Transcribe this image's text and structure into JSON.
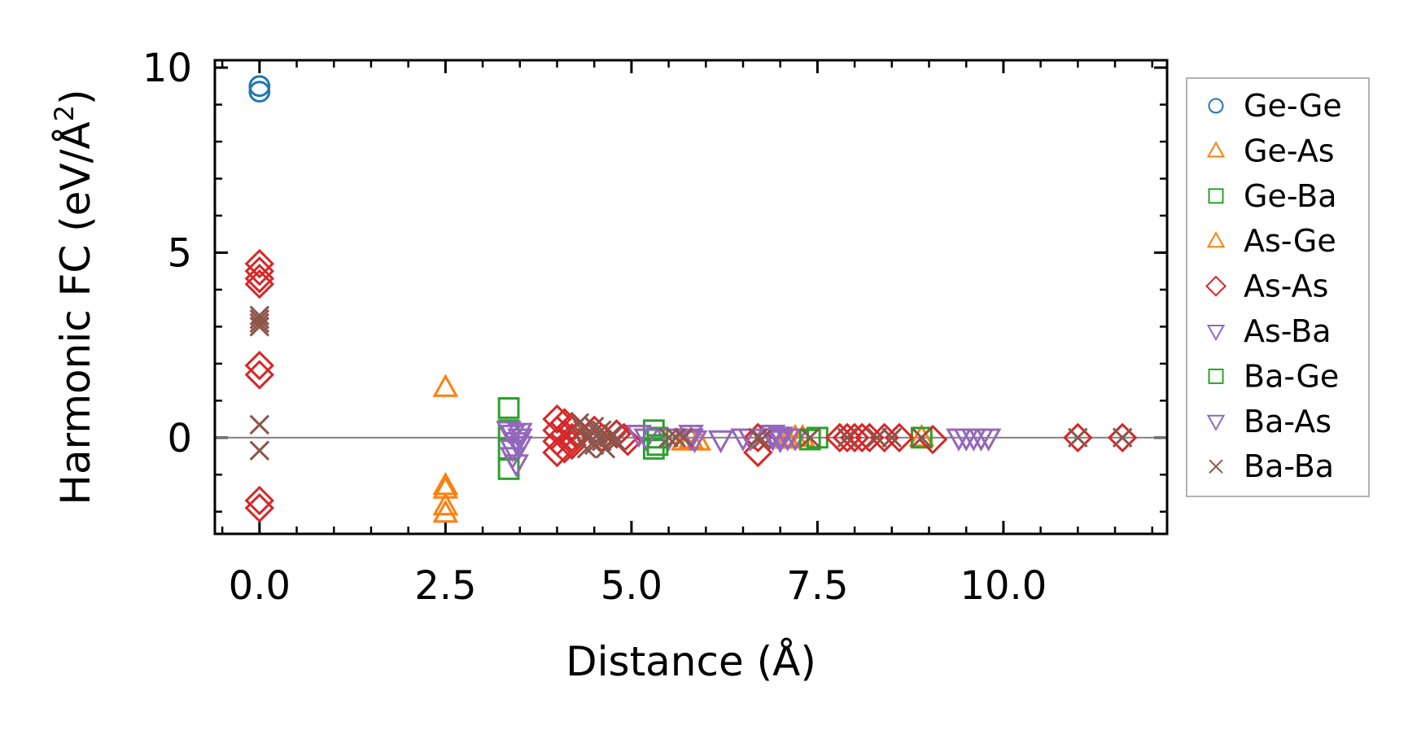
{
  "chart_data": {
    "type": "scatter",
    "title": "",
    "xlabel": "Distance (Å)",
    "ylabel": "Harmonic FC (eV/Å²)",
    "ylabel_main": "Harmonic FC (eV/Å",
    "ylabel_sup": "2",
    "ylabel_tail": ")",
    "xlim": [
      -0.6,
      12.2
    ],
    "ylim": [
      -2.6,
      10.2
    ],
    "xticks": [
      0.0,
      2.5,
      5.0,
      7.5,
      10.0
    ],
    "xtick_labels": [
      "0.0",
      "2.5",
      "5.0",
      "7.5",
      "10.0"
    ],
    "yticks": [
      0,
      5,
      10
    ],
    "ytick_labels": [
      "0",
      "5",
      "10"
    ],
    "x_minor_step": 0.5,
    "y_minor_step": 1,
    "hline": 0,
    "legend_position": "outside-right",
    "series": [
      {
        "name": "Ge-Ge",
        "marker": "circle",
        "color": "#1f77b4",
        "points": [
          [
            0,
            9.5
          ],
          [
            0,
            9.35
          ]
        ]
      },
      {
        "name": "Ge-As",
        "marker": "triangle-up",
        "color": "#ff7f0e",
        "points": [
          [
            2.5,
            1.35
          ],
          [
            2.5,
            -1.3
          ],
          [
            2.5,
            -1.85
          ],
          [
            2.5,
            -2.05
          ],
          [
            5.7,
            -0.1
          ],
          [
            5.9,
            -0.1
          ],
          [
            7.2,
            0
          ],
          [
            7.3,
            0
          ],
          [
            8.9,
            0
          ]
        ]
      },
      {
        "name": "Ge-Ba",
        "marker": "square",
        "color": "#2ca02c",
        "points": [
          [
            3.35,
            0.8
          ],
          [
            3.35,
            -0.85
          ],
          [
            3.35,
            0.2
          ],
          [
            3.35,
            -0.3
          ],
          [
            5.3,
            0.2
          ],
          [
            5.3,
            -0.3
          ],
          [
            5.35,
            0
          ],
          [
            7.5,
            0
          ],
          [
            8.9,
            0
          ]
        ]
      },
      {
        "name": "As-Ge",
        "marker": "triangle-up",
        "color": "#ff7f0e",
        "points": [
          [
            2.5,
            -1.4
          ],
          [
            5.8,
            -0.05
          ],
          [
            7.1,
            -0.05
          ]
        ]
      },
      {
        "name": "As-As",
        "marker": "diamond",
        "color": "#d62728",
        "points": [
          [
            0,
            4.7
          ],
          [
            0,
            4.5
          ],
          [
            0,
            4.3
          ],
          [
            0,
            4.15
          ],
          [
            0,
            1.95
          ],
          [
            0,
            1.7
          ],
          [
            0,
            -1.7
          ],
          [
            0,
            -1.9
          ],
          [
            4.0,
            0.5
          ],
          [
            4.0,
            0.2
          ],
          [
            4.0,
            -0.1
          ],
          [
            4.0,
            -0.4
          ],
          [
            4.1,
            0.4
          ],
          [
            4.1,
            0.1
          ],
          [
            4.1,
            -0.3
          ],
          [
            4.2,
            0.3
          ],
          [
            4.2,
            0
          ],
          [
            4.2,
            -0.2
          ],
          [
            4.3,
            0.1
          ],
          [
            4.5,
            0.2
          ],
          [
            4.6,
            0
          ],
          [
            4.8,
            0.1
          ],
          [
            4.9,
            0
          ],
          [
            4.95,
            -0.1
          ],
          [
            6.7,
            -0.4
          ],
          [
            6.7,
            0
          ],
          [
            7.8,
            0
          ],
          [
            7.9,
            0
          ],
          [
            8.0,
            0
          ],
          [
            8.1,
            0
          ],
          [
            8.2,
            0
          ],
          [
            8.4,
            0
          ],
          [
            8.6,
            0
          ],
          [
            9.05,
            -0.05
          ],
          [
            11.0,
            0
          ],
          [
            11.6,
            0
          ]
        ]
      },
      {
        "name": "As-Ba",
        "marker": "triangle-down",
        "color": "#9467bd",
        "points": [
          [
            3.35,
            0.2
          ],
          [
            3.4,
            0.1
          ],
          [
            3.45,
            -0.1
          ],
          [
            3.4,
            -0.3
          ],
          [
            3.4,
            -0.5
          ],
          [
            3.45,
            -0.7
          ],
          [
            3.5,
            0.15
          ],
          [
            3.5,
            -0.2
          ],
          [
            5.1,
            0.1
          ],
          [
            5.2,
            0
          ],
          [
            5.5,
            0
          ],
          [
            5.8,
            0.1
          ],
          [
            5.85,
            -0.05
          ],
          [
            6.2,
            -0.05
          ],
          [
            6.5,
            0
          ],
          [
            6.6,
            0
          ],
          [
            6.9,
            0.1
          ],
          [
            7.0,
            0.05
          ],
          [
            7.1,
            0
          ],
          [
            7.2,
            0
          ],
          [
            9.4,
            0
          ],
          [
            9.6,
            0
          ],
          [
            9.7,
            0
          ],
          [
            9.8,
            0
          ]
        ]
      },
      {
        "name": "Ba-Ge",
        "marker": "square",
        "color": "#2ca02c",
        "points": [
          [
            5.35,
            -0.2
          ],
          [
            7.4,
            -0.05
          ]
        ]
      },
      {
        "name": "Ba-As",
        "marker": "triangle-down",
        "color": "#9467bd",
        "points": [
          [
            3.45,
            -0.1
          ],
          [
            3.5,
            0
          ],
          [
            5.8,
            0
          ],
          [
            6.9,
            0
          ],
          [
            7.0,
            -0.05
          ],
          [
            9.5,
            0
          ]
        ]
      },
      {
        "name": "Ba-Ba",
        "marker": "x",
        "color": "#8c564b",
        "points": [
          [
            0,
            3.3
          ],
          [
            0,
            3.2
          ],
          [
            0,
            3.1
          ],
          [
            0,
            3.0
          ],
          [
            0,
            0.35
          ],
          [
            0,
            -0.35
          ],
          [
            4.3,
            0.4
          ],
          [
            4.35,
            0.2
          ],
          [
            4.4,
            0
          ],
          [
            4.4,
            -0.3
          ],
          [
            4.5,
            0.3
          ],
          [
            4.5,
            -0.2
          ],
          [
            4.55,
            0.1
          ],
          [
            4.6,
            0.2
          ],
          [
            4.6,
            -0.1
          ],
          [
            4.65,
            -0.3
          ],
          [
            4.7,
            0
          ],
          [
            4.75,
            0.1
          ],
          [
            4.8,
            -0.1
          ],
          [
            5.5,
            0
          ],
          [
            5.6,
            0
          ],
          [
            5.7,
            0
          ],
          [
            6.7,
            0
          ],
          [
            6.75,
            -0.05
          ],
          [
            7.4,
            0
          ],
          [
            7.9,
            0
          ],
          [
            8.3,
            0
          ],
          [
            8.5,
            0
          ],
          [
            8.9,
            0
          ],
          [
            11.0,
            0
          ],
          [
            11.6,
            0
          ]
        ]
      }
    ]
  }
}
